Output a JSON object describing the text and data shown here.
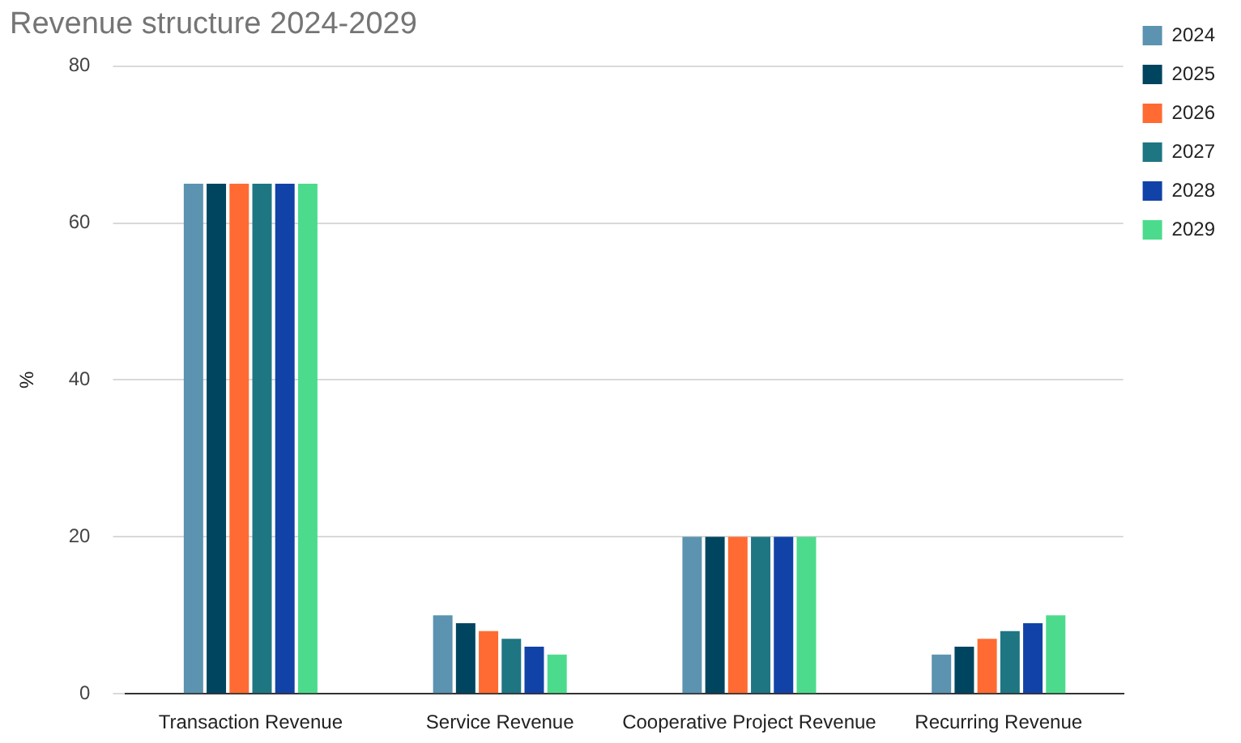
{
  "chart_data": {
    "type": "bar",
    "title": "Revenue structure 2024-2029",
    "ylabel": "%",
    "categories": [
      "Transaction Revenue",
      "Service Revenue",
      "Cooperative Project Revenue",
      "Recurring Revenue"
    ],
    "series": [
      {
        "name": "2024",
        "color": "#5b93b0",
        "values": [
          65,
          10,
          20,
          5
        ]
      },
      {
        "name": "2025",
        "color": "#004560",
        "values": [
          65,
          9,
          20,
          6
        ]
      },
      {
        "name": "2026",
        "color": "#ff6b32",
        "values": [
          65,
          8,
          20,
          7
        ]
      },
      {
        "name": "2027",
        "color": "#1f7683",
        "values": [
          65,
          7,
          20,
          8
        ]
      },
      {
        "name": "2028",
        "color": "#1142a8",
        "values": [
          65,
          6,
          20,
          9
        ]
      },
      {
        "name": "2029",
        "color": "#4cdb8c",
        "values": [
          65,
          5,
          20,
          10
        ]
      }
    ],
    "ylim": [
      0,
      80
    ],
    "yticks": [
      0,
      20,
      40,
      60,
      80
    ],
    "grid": "y",
    "legend": "right"
  }
}
